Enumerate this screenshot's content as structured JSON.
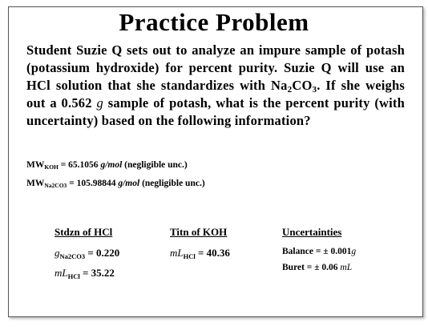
{
  "title": "Practice Problem",
  "problem": {
    "text_1": "Student Suzie Q sets out to analyze an impure sample of potash (potassium hydroxide) for percent purity.  Suzie Q will use an HCl solution that she standardizes with Na",
    "sub_1": "2",
    "text_2": "CO",
    "sub_2": "3",
    "text_3": ". If she weighs out a 0.562",
    "unit": "g",
    "text_4": "sample of potash, what is the percent purity (with uncertainty) based on the following information?"
  },
  "constants": [
    {
      "symbol": "MW",
      "subscript": "KOH",
      "value": "= 65.1056",
      "unit": "g/mol",
      "note": "(negligible unc.)"
    },
    {
      "symbol": "MW",
      "subscript": "Na2CO3",
      "value": "= 105.98844",
      "unit": "g/mol",
      "note": "(negligible unc.)"
    }
  ],
  "columns": [
    {
      "header": "Stdzn of HCl",
      "rows": [
        {
          "var": "g",
          "sub": "Na2CO3",
          "value": "= 0.220"
        },
        {
          "var": "mL",
          "sub": "HCl",
          "value": "= 35.22"
        }
      ]
    },
    {
      "header": "Titn of KOH",
      "rows": [
        {
          "var": "mL",
          "sub": "HCl",
          "value": "= 40.36"
        }
      ]
    },
    {
      "header": "Uncertainties",
      "rows": [
        {
          "label": "Balance",
          "value": "= ± 0.001",
          "unit": "g"
        },
        {
          "label": "Buret",
          "value": "= ± 0.06",
          "unit": "mL"
        }
      ]
    }
  ]
}
